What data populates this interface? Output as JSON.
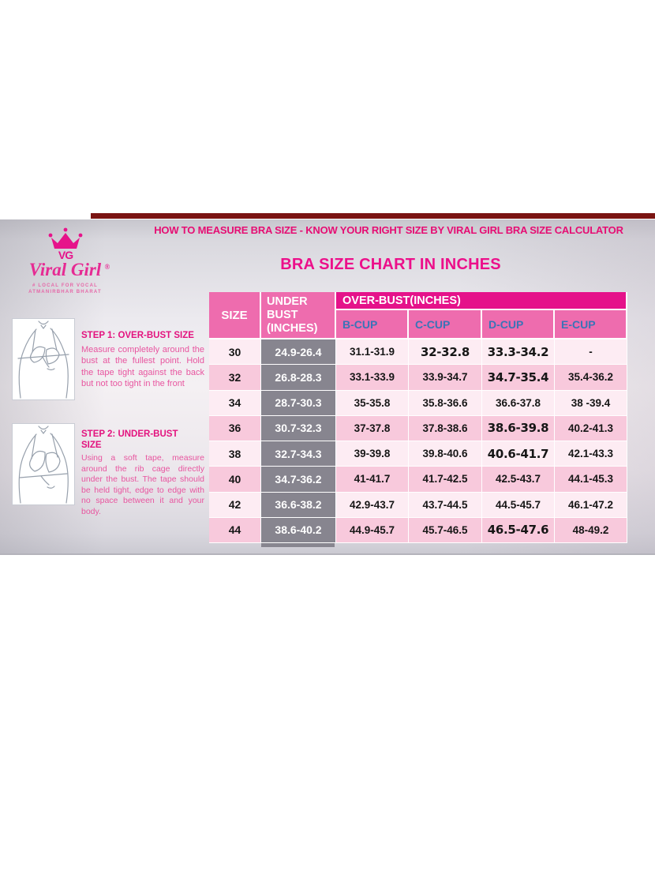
{
  "banner": {
    "text": "HOW TO MEASURE BRA SIZE - KNOW YOUR RIGHT SIZE BY VIRAL GIRL BRA SIZE CALCULATOR"
  },
  "logo": {
    "brand": "Viral Girl",
    "registered_mark": "®",
    "monogram": "VG",
    "tagline_line1": "# LOCAL FOR VOCAL",
    "tagline_line2": "ATMANIRBHAR BHARAT"
  },
  "title": "BRA SIZE CHART IN INCHES",
  "steps": [
    {
      "title": "STEP 1: OVER-BUST SIZE",
      "body": "Measure completely around the bust at the fullest point. Hold the tape tight against the back but not too tight in the front"
    },
    {
      "title": "STEP 2: UNDER-BUST SIZE",
      "body": "Using a soft tape, measure around the rib cage directly under the bust. The tape should be held tight, edge to edge with no space between it and your body."
    }
  ],
  "chart_data": {
    "type": "table",
    "title": "BRA SIZE CHART IN INCHES",
    "header": {
      "size_label": "SIZE",
      "under_bust_label": "UNDER BUST (INCHES)",
      "over_bust_group_label": "OVER-BUST(INCHES)",
      "cup_labels": [
        "B-CUP",
        "C-CUP",
        "D-CUP",
        "E-CUP"
      ]
    },
    "columns": [
      "SIZE",
      "UNDER BUST (INCHES)",
      "B-CUP",
      "C-CUP",
      "D-CUP",
      "E-CUP"
    ],
    "rows": [
      {
        "size": "30",
        "under_bust": "24.9-26.4",
        "b": "31.1-31.9",
        "c": "32-32.8",
        "d": "33.3-34.2",
        "e": "-",
        "emph": [
          "c",
          "d"
        ]
      },
      {
        "size": "32",
        "under_bust": "26.8-28.3",
        "b": "33.1-33.9",
        "c": "33.9-34.7",
        "d": "34.7-35.4",
        "e": "35.4-36.2",
        "emph": [
          "d"
        ]
      },
      {
        "size": "34",
        "under_bust": "28.7-30.3",
        "b": "35-35.8",
        "c": "35.8-36.6",
        "d": "36.6-37.8",
        "e": "38 -39.4",
        "emph": []
      },
      {
        "size": "36",
        "under_bust": "30.7-32.3",
        "b": "37-37.8",
        "c": "37.8-38.6",
        "d": "38.6-39.8",
        "e": "40.2-41.3",
        "emph": [
          "d"
        ]
      },
      {
        "size": "38",
        "under_bust": "32.7-34.3",
        "b": "39-39.8",
        "c": "39.8-40.6",
        "d": "40.6-41.7",
        "e": "42.1-43.3",
        "emph": [
          "d"
        ]
      },
      {
        "size": "40",
        "under_bust": "34.7-36.2",
        "b": "41-41.7",
        "c": "41.7-42.5",
        "d": "42.5-43.7",
        "e": "44.1-45.3",
        "emph": []
      },
      {
        "size": "42",
        "under_bust": "36.6-38.2",
        "b": "42.9-43.7",
        "c": "43.7-44.5",
        "d": "44.5-45.7",
        "e": "46.1-47.2",
        "emph": []
      },
      {
        "size": "44",
        "under_bust": "38.6-40.2",
        "b": "44.9-45.7",
        "c": "45.7-46.5",
        "d": "46.5-47.6",
        "e": "48-49.2",
        "emph": [
          "d"
        ]
      }
    ],
    "layout_hints": {
      "row_striping": [
        "light-pink",
        "medium-pink"
      ],
      "under_bust_column_style": "gray-with-white-text",
      "grid": "white 1.5px separators"
    }
  },
  "colors": {
    "accent_maroon_bar": "#7a1412",
    "banner_text": "#e60d73",
    "title_text": "#ec0f8a",
    "brand_pink": "#e6138a",
    "over_bust_band_bg": "#e5128a",
    "header_cell_bg": "#ee6cae",
    "cup_label_blue": "#3a74b7",
    "row_light_pink": "#fdecf3",
    "row_medium_pink": "#f8c9dc",
    "under_bust_gray": "#87858f",
    "step_title_pink": "#e3127e",
    "step_body_pink": "#e8559f"
  }
}
